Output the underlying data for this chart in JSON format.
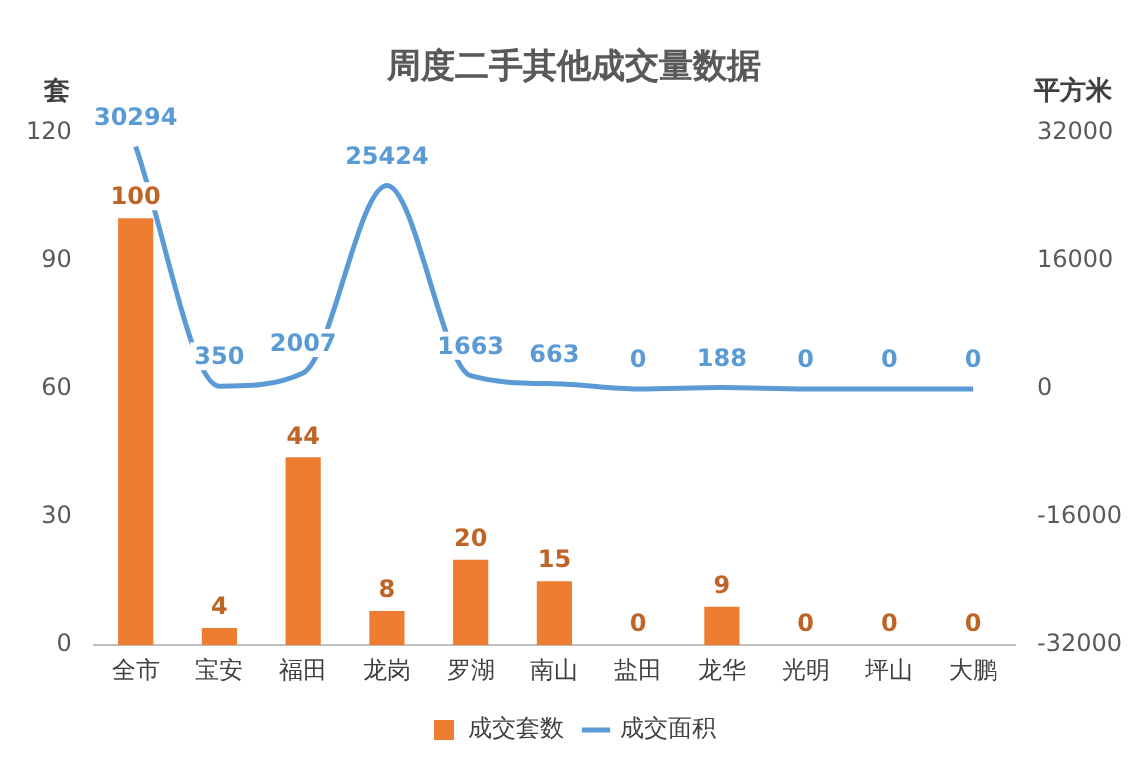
{
  "chart_data": {
    "type": "bar",
    "title": "周度二手其他成交量数据",
    "ylabel": "套",
    "y2label": "平方米",
    "categories": [
      "全市",
      "宝安",
      "福田",
      "龙岗",
      "罗湖",
      "南山",
      "盐田",
      "龙华",
      "光明",
      "坪山",
      "大鹏"
    ],
    "series": [
      {
        "name": "成交套数",
        "color": "#ed7d31",
        "values": [
          100,
          4,
          44,
          8,
          20,
          15,
          0,
          9,
          0,
          0,
          0
        ]
      },
      {
        "name": "成交面积",
        "type": "line",
        "axis": "y2",
        "color": "#5b9bd5",
        "values": [
          30294,
          350,
          2007,
          25424,
          1663,
          663,
          0,
          188,
          0,
          0,
          0
        ]
      }
    ],
    "ylim": [
      0,
      120
    ],
    "yticks": [
      0,
      30,
      60,
      90,
      120
    ],
    "y2lim": [
      -32000,
      32000
    ],
    "y2ticks": [
      -32000,
      -16000,
      0,
      16000,
      32000
    ],
    "data_labels": true,
    "grid": false,
    "legend": "bottom",
    "marker": "none"
  }
}
